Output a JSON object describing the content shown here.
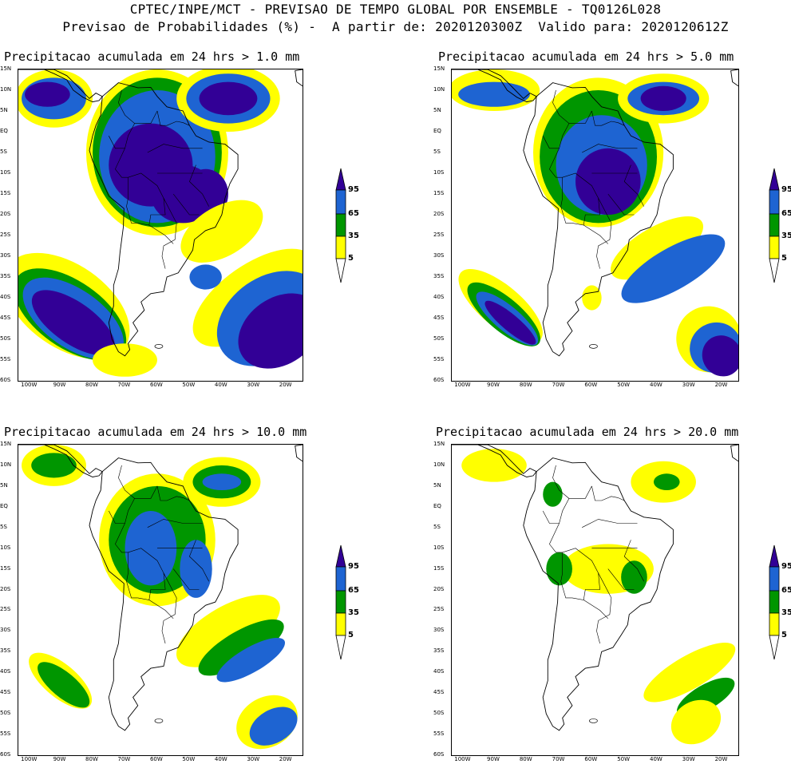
{
  "header": {
    "line1": "CPTEC/INPE/MCT - PREVISAO DE TEMPO GLOBAL POR ENSEMBLE - TQ0126L028",
    "line2": "Previsao de Probabilidades (%) -  A partir de: 2020120300Z  Valido para: 2020120612Z"
  },
  "colors": {
    "c5": "#ffff00",
    "c35": "#009600",
    "c65": "#1e64d2",
    "c95": "#320096",
    "land_outline": "#000000"
  },
  "lat_labels": [
    "15N",
    "10N",
    "5N",
    "EQ",
    "5S",
    "10S",
    "15S",
    "20S",
    "25S",
    "30S",
    "35S",
    "40S",
    "45S",
    "50S",
    "55S",
    "60S"
  ],
  "lon_labels": [
    "100W",
    "90W",
    "80W",
    "70W",
    "60W",
    "50W",
    "40W",
    "30W",
    "20W"
  ],
  "colorbar_levels": [
    "95",
    "65",
    "35",
    "5"
  ],
  "panels": [
    {
      "title": "Precipitacao acumulada em 24 hrs > 1.0 mm",
      "threshold_mm": 1.0
    },
    {
      "title": "Precipitacao acumulada em 24 hrs > 5.0 mm",
      "threshold_mm": 5.0
    },
    {
      "title": "Precipitacao acumulada em 24 hrs > 10.0 mm",
      "threshold_mm": 10.0
    },
    {
      "title": "Precipitacao acumulada em 24 hrs > 20.0 mm",
      "threshold_mm": 20.0
    }
  ]
}
